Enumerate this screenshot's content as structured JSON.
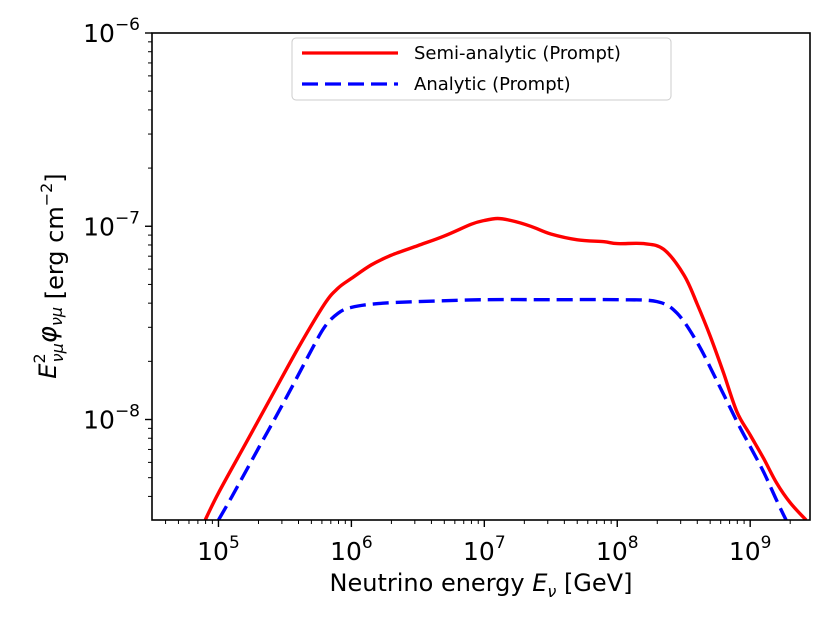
{
  "chart_data": {
    "type": "line",
    "title": "",
    "xlabel": "Neutrino energy E_ν [GeV]",
    "xlabel_parts": {
      "prefix": "Neutrino energy ",
      "var": "E",
      "sub": "ν",
      "suffix": " [GeV]"
    },
    "ylabel": "E²_νμ φ_νμ [erg cm⁻²]",
    "ylabel_parts": {
      "var": "E",
      "sup": "2",
      "sub": "νμ",
      "phi": "φ",
      "phisub": "νμ",
      "units": " [erg cm",
      "units_sup": "−2",
      "units_close": "]"
    },
    "xscale": "log",
    "yscale": "log",
    "xlim_log10": [
      4.5,
      9.45
    ],
    "ylim_log10": [
      -8.52,
      -6.0
    ],
    "xticks": [
      {
        "exp": 5,
        "base": "10",
        "sup": "5"
      },
      {
        "exp": 6,
        "base": "10",
        "sup": "6"
      },
      {
        "exp": 7,
        "base": "10",
        "sup": "7"
      },
      {
        "exp": 8,
        "base": "10",
        "sup": "8"
      },
      {
        "exp": 9,
        "base": "10",
        "sup": "9"
      }
    ],
    "yticks": [
      {
        "exp": -6,
        "base": "10",
        "sup": "−6"
      },
      {
        "exp": -7,
        "base": "10",
        "sup": "−7"
      },
      {
        "exp": -8,
        "base": "10",
        "sup": "−8"
      }
    ],
    "legend_position": "top-center",
    "series": [
      {
        "name": "Semi-analytic (Prompt)",
        "color": "#ff0000",
        "style": "solid",
        "x_log10": [
          4.9,
          5.0,
          5.2,
          5.4,
          5.6,
          5.8,
          5.9,
          6.0,
          6.15,
          6.3,
          6.5,
          6.7,
          6.9,
          7.0,
          7.1,
          7.2,
          7.35,
          7.5,
          7.7,
          7.9,
          8.0,
          8.2,
          8.35,
          8.5,
          8.6,
          8.7,
          8.8,
          8.9,
          9.0,
          9.1,
          9.2,
          9.3,
          9.42
        ],
        "y_log10": [
          -8.52,
          -8.38,
          -8.13,
          -7.88,
          -7.63,
          -7.4,
          -7.32,
          -7.27,
          -7.2,
          -7.15,
          -7.1,
          -7.05,
          -6.99,
          -6.97,
          -6.96,
          -6.97,
          -7.0,
          -7.04,
          -7.07,
          -7.08,
          -7.09,
          -7.09,
          -7.12,
          -7.25,
          -7.4,
          -7.57,
          -7.76,
          -7.96,
          -8.08,
          -8.2,
          -8.33,
          -8.43,
          -8.52
        ]
      },
      {
        "name": "Analytic (Prompt)",
        "color": "#0000ff",
        "style": "dashed",
        "x_log10": [
          5.0,
          5.1,
          5.3,
          5.5,
          5.7,
          5.8,
          5.9,
          6.0,
          6.2,
          6.5,
          7.0,
          7.5,
          8.0,
          8.3,
          8.45,
          8.6,
          8.75,
          8.9,
          9.0,
          9.1,
          9.2,
          9.27
        ],
        "y_log10": [
          -8.52,
          -8.4,
          -8.15,
          -7.9,
          -7.64,
          -7.52,
          -7.45,
          -7.42,
          -7.4,
          -7.39,
          -7.38,
          -7.38,
          -7.38,
          -7.39,
          -7.45,
          -7.6,
          -7.8,
          -8.01,
          -8.14,
          -8.27,
          -8.42,
          -8.52
        ]
      }
    ]
  }
}
